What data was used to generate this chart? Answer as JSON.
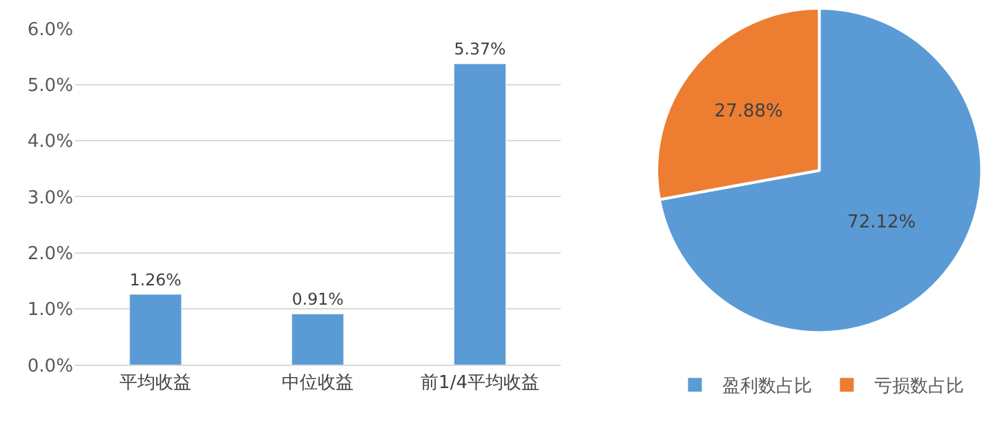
{
  "chart_data": [
    {
      "type": "bar",
      "categories": [
        "平均收益",
        "中位收益",
        "前1/4平均收益"
      ],
      "values": [
        1.26,
        0.91,
        5.37
      ],
      "value_labels": [
        "1.26%",
        "0.91%",
        "5.37%"
      ],
      "color": "#5b9bd5",
      "ylim": [
        0,
        6
      ],
      "yticks": [
        {
          "value": 0,
          "label": "0.0%"
        },
        {
          "value": 1,
          "label": "1.0%"
        },
        {
          "value": 2,
          "label": "2.0%"
        },
        {
          "value": 3,
          "label": "3.0%"
        },
        {
          "value": 4,
          "label": "4.0%"
        },
        {
          "value": 5,
          "label": "5.0%"
        },
        {
          "value": 6,
          "label": "6.0%"
        }
      ],
      "grid": "y"
    },
    {
      "type": "pie",
      "categories": [
        "盈利数占比",
        "亏损数占比"
      ],
      "values": [
        72.12,
        27.88
      ],
      "colors": [
        "#5b9bd5",
        "#ed7d31"
      ],
      "value_labels": [
        "72.12%",
        "27.88%"
      ],
      "legend": "bottom"
    }
  ]
}
